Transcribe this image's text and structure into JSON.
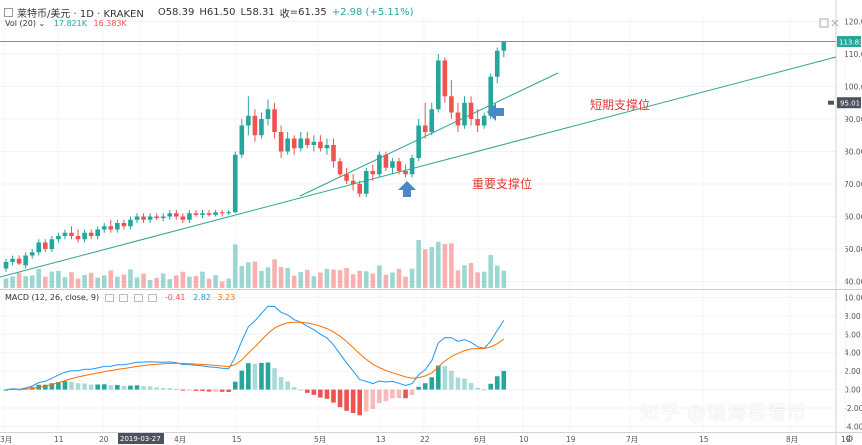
{
  "header": {
    "symbol": "莱特币/美元 · 1D · KRAKEN",
    "open_label": "O",
    "open": "58.39",
    "high_label": "H",
    "high": "61.50",
    "low_label": "L",
    "low": "58.31",
    "close_label": "收",
    "close": "=61.35",
    "change": "+2.98 (+5.11%)"
  },
  "volume": {
    "label": "Vol (20) ⌄",
    "v1": "17.821K",
    "v2": "16.383K"
  },
  "macd": {
    "label": "MACD (12, 26, close, 9)",
    "hist": "-0.41",
    "macd": "2.82",
    "signal": "3.23"
  },
  "annotations": {
    "short_support": "短期支撑位",
    "major_support": "重要支撑位"
  },
  "watermark": "知乎 @瑞海君看币",
  "price_badges": {
    "top": "113.83",
    "crosshair": "95.01"
  },
  "colors": {
    "up": "#26a69a",
    "down": "#ef5350",
    "macd_line": "#2196f3",
    "signal_line": "#ff6d00",
    "trendline": "#2fa58d",
    "arrow": "#4a86c8"
  },
  "chart_data": {
    "type": "candlestick",
    "price_axis": {
      "labels": [
        "120.00",
        "110.00",
        "100.00",
        "90.00",
        "80.00",
        "70.00",
        "60.00",
        "50.00",
        "40.00"
      ],
      "values": [
        120,
        110,
        100,
        90,
        80,
        70,
        60,
        50,
        40
      ]
    },
    "macd_axis": {
      "labels": [
        "10.00",
        "8.00",
        "6.00",
        "4.00",
        "2.00",
        "0.00",
        "-2.00",
        "-4.00"
      ],
      "values": [
        10,
        8,
        6,
        4,
        2,
        0,
        -2,
        -4
      ]
    },
    "time_axis": [
      "3月",
      "11",
      "20",
      "2019-03-27",
      "4月",
      "15",
      "5月",
      "13",
      "22",
      "6月",
      "10",
      "19",
      "7月",
      "15",
      "8月",
      "19"
    ],
    "candles": [
      [
        44,
        47,
        43,
        46
      ],
      [
        46,
        48,
        45,
        47
      ],
      [
        47,
        48,
        45,
        45.5
      ],
      [
        45,
        49,
        44,
        48
      ],
      [
        48,
        50,
        47,
        49
      ],
      [
        49,
        53,
        48,
        52
      ],
      [
        52,
        53,
        49,
        50
      ],
      [
        50,
        54,
        49,
        53
      ],
      [
        53,
        55,
        52,
        54
      ],
      [
        54,
        56,
        53,
        55
      ],
      [
        55,
        57,
        53,
        54
      ],
      [
        54,
        56,
        52,
        53
      ],
      [
        53,
        56,
        52,
        55
      ],
      [
        55,
        56,
        53,
        54
      ],
      [
        54,
        57,
        53,
        56
      ],
      [
        56,
        58,
        55,
        57
      ],
      [
        57,
        59,
        55,
        56
      ],
      [
        56,
        59,
        55,
        58
      ],
      [
        58,
        59,
        56,
        57
      ],
      [
        57,
        60,
        56,
        59
      ],
      [
        59,
        61,
        58,
        60
      ],
      [
        60,
        61,
        58,
        59
      ],
      [
        59,
        61,
        58,
        60
      ],
      [
        60,
        61,
        59,
        59.5
      ],
      [
        59.5,
        61,
        58.5,
        60
      ],
      [
        60,
        62,
        59,
        61
      ],
      [
        61,
        62,
        59,
        60
      ],
      [
        60,
        61,
        58,
        59
      ],
      [
        59,
        62,
        58,
        61
      ],
      [
        61,
        62,
        60,
        60.5
      ],
      [
        60.5,
        62,
        59.5,
        61
      ],
      [
        61,
        62,
        60,
        60.5
      ],
      [
        60.5,
        62,
        60,
        61.3
      ],
      [
        61.3,
        62,
        60,
        61
      ],
      [
        61,
        62,
        60.5,
        61.35
      ],
      [
        61.35,
        80,
        61,
        79
      ],
      [
        79,
        90,
        78,
        88
      ],
      [
        88,
        97,
        85,
        91
      ],
      [
        91,
        93,
        83,
        85
      ],
      [
        85,
        92,
        84,
        90
      ],
      [
        90,
        96,
        88,
        93
      ],
      [
        93,
        95,
        84,
        86
      ],
      [
        86,
        88,
        78,
        80
      ],
      [
        80,
        86,
        79,
        84
      ],
      [
        84,
        85,
        79,
        81
      ],
      [
        81,
        86,
        80,
        84
      ],
      [
        84,
        86,
        81,
        82
      ],
      [
        82,
        85,
        80,
        83
      ],
      [
        83,
        85,
        80,
        81
      ],
      [
        81,
        84,
        79,
        82
      ],
      [
        82,
        84,
        75,
        77
      ],
      [
        77,
        78,
        72,
        73
      ],
      [
        73,
        75,
        70,
        71
      ],
      [
        71,
        73,
        68,
        70
      ],
      [
        70,
        71,
        66,
        67
      ],
      [
        67,
        75,
        66,
        74
      ],
      [
        74,
        76,
        71,
        73
      ],
      [
        73,
        80,
        72,
        79
      ],
      [
        79,
        80,
        74,
        75
      ],
      [
        75,
        78,
        73,
        77
      ],
      [
        77,
        78,
        73,
        74
      ],
      [
        74,
        76,
        72,
        73
      ],
      [
        73,
        79,
        72,
        78
      ],
      [
        78,
        90,
        77,
        88
      ],
      [
        88,
        95,
        84,
        86
      ],
      [
        86,
        95,
        85,
        93
      ],
      [
        93,
        110,
        92,
        108
      ],
      [
        108,
        109,
        95,
        97
      ],
      [
        97,
        102,
        90,
        92
      ],
      [
        92,
        95,
        86,
        88
      ],
      [
        88,
        97,
        87,
        95
      ],
      [
        95,
        97,
        88,
        90
      ],
      [
        90,
        93,
        86,
        88
      ],
      [
        88,
        92,
        87,
        91
      ],
      [
        91,
        104,
        90,
        103
      ],
      [
        103,
        112,
        101,
        111
      ],
      [
        111,
        114,
        109,
        113.83
      ]
    ]
  }
}
